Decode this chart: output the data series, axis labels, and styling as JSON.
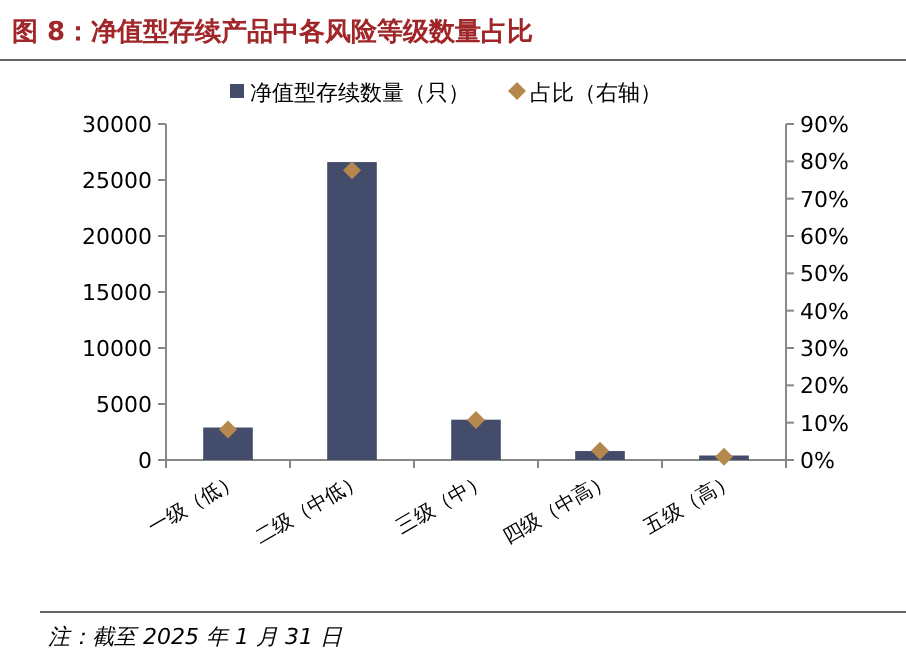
{
  "chart_data": {
    "type": "bar",
    "title": "图 8：净值型存续产品中各风险等级数量占比",
    "categories": [
      "一级（低）",
      "二级（中低）",
      "三级（中）",
      "四级（中高）",
      "五级（高）"
    ],
    "series": [
      {
        "name": "净值型存续数量（只）",
        "color": "#444c6b",
        "values": [
          2900,
          26600,
          3600,
          800,
          400
        ]
      },
      {
        "name": "占比（右轴）",
        "type": "scatter",
        "axis": "y2",
        "color": "#b5894e",
        "marker": "diamond",
        "values": [
          8.2,
          77.6,
          10.7,
          2.5,
          0.9
        ]
      }
    ],
    "ylim": [
      0,
      30000
    ],
    "yticks": [
      0,
      5000,
      10000,
      15000,
      20000,
      25000,
      30000
    ],
    "y2lim": [
      0,
      90
    ],
    "y2ticks": [
      {
        "value": 0,
        "label": "0%"
      },
      {
        "value": 10,
        "label": "10%"
      },
      {
        "value": 20,
        "label": "20%"
      },
      {
        "value": 30,
        "label": "30%"
      },
      {
        "value": 40,
        "label": "40%"
      },
      {
        "value": 50,
        "label": "50%"
      },
      {
        "value": 60,
        "label": "60%"
      },
      {
        "value": 70,
        "label": "70%"
      },
      {
        "value": 80,
        "label": "80%"
      },
      {
        "value": 90,
        "label": "90%"
      }
    ],
    "legend": "top",
    "grid": false,
    "annotations": [
      "注：截至 2025 年 1 月 31 日"
    ]
  }
}
